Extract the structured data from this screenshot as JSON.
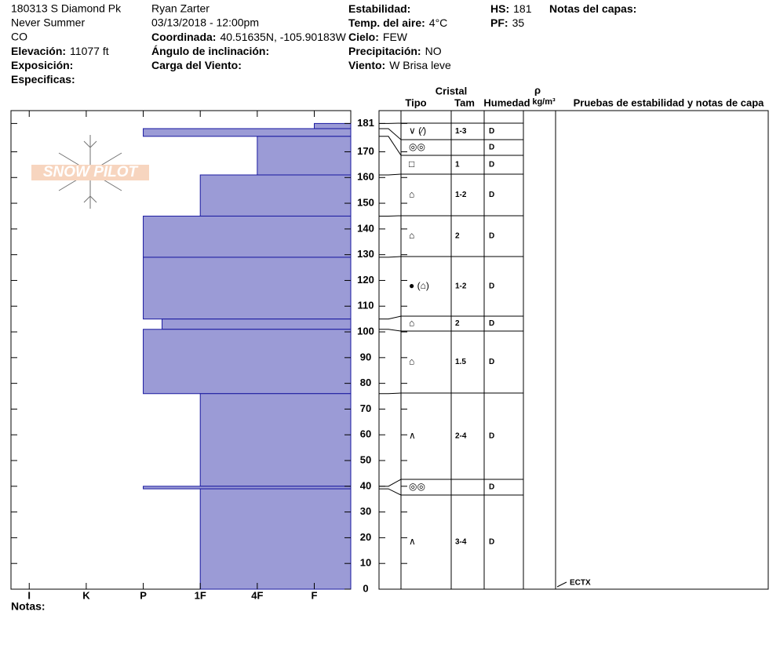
{
  "header": {
    "columns": [
      [
        {
          "text": "180313 S Diamond Pk"
        },
        {
          "text": "Never Summer"
        },
        {
          "text": "CO"
        },
        {
          "label": "Elevación:",
          "value": "11077 ft"
        },
        {
          "label": "Exposición:"
        },
        {
          "label": "Especificas:"
        }
      ],
      [
        {
          "text": "Ryan Zarter"
        },
        {
          "text": "03/13/2018 - 12:00pm"
        },
        {
          "label": "Coordinada:",
          "value": "40.51635N, -105.90183W"
        },
        {
          "label": "Ángulo de inclinación:"
        },
        {
          "label": "Carga del Viento:"
        }
      ],
      [
        {
          "label": "Estabilidad:"
        },
        {
          "label": "Temp. del aire:",
          "value": "4°C"
        },
        {
          "label": "Cielo:",
          "value": "FEW"
        },
        {
          "label": "Precipitación:",
          "value": "NO"
        },
        {
          "label": "Viento:",
          "value": "W Brisa leve"
        }
      ],
      [
        {
          "label": "HS:",
          "value": "181"
        },
        {
          "label": "PF:",
          "value": "35"
        }
      ],
      [
        {
          "label": "Notas del capas:"
        }
      ]
    ]
  },
  "logo": "SNOW PILOT",
  "notes_label": "Notas:",
  "chart_data": {
    "type": "snow-profile",
    "ylim": [
      0,
      186
    ],
    "yticks": [
      0,
      10,
      20,
      30,
      40,
      50,
      60,
      70,
      80,
      90,
      100,
      110,
      120,
      130,
      140,
      150,
      160,
      170,
      181
    ],
    "xlim": [
      0.68,
      6.64
    ],
    "xticks": [
      {
        "value": 1,
        "label": "I"
      },
      {
        "value": 2,
        "label": "K"
      },
      {
        "value": 3,
        "label": "P"
      },
      {
        "value": 4,
        "label": "1F"
      },
      {
        "value": 5,
        "label": "4F"
      },
      {
        "value": 6,
        "label": "F"
      }
    ],
    "color": "#9b9bd6",
    "edge_color": "#1a1aa0",
    "table_headers": {
      "crystal": "Cristal",
      "type": "Tipo",
      "size": "Tam",
      "moisture": "Humedad",
      "rho": "ρ",
      "density": "kg/m³",
      "tests": "Pruebas de estabilidad y notas de capa"
    },
    "layers": [
      {
        "top": 181,
        "bottom": 179,
        "hardness": 6,
        "grain": "∨ (⁄)",
        "size": "1-3",
        "moisture": "D"
      },
      {
        "top": 179,
        "bottom": 176,
        "hardness": 3,
        "grain": "◎◎",
        "size": null,
        "moisture": "D"
      },
      {
        "top": 176,
        "bottom": 161,
        "hardness": 5,
        "grain": "□",
        "size": "1",
        "moisture": "D"
      },
      {
        "top": 161,
        "bottom": 145,
        "hardness": 4,
        "grain": "⌂",
        "size": "1-2",
        "moisture": "D"
      },
      {
        "top": 145,
        "bottom": 129,
        "hardness": 3,
        "grain": "⌂",
        "size": "2",
        "moisture": "D"
      },
      {
        "top": 129,
        "bottom": 105,
        "hardness": 3,
        "grain": "● (⌂)",
        "size": "1-2",
        "moisture": "D"
      },
      {
        "top": 105,
        "bottom": 101,
        "hardness": 3.33,
        "grain": "⌂",
        "size": "2",
        "moisture": "D"
      },
      {
        "top": 101,
        "bottom": 76,
        "hardness": 3,
        "grain": "⌂",
        "size": "1.5",
        "moisture": "D"
      },
      {
        "top": 76,
        "bottom": 40,
        "hardness": 4,
        "grain": "∧",
        "size": "2-4",
        "moisture": "D"
      },
      {
        "top": 40,
        "bottom": 39,
        "hardness": 3,
        "grain": "◎◎",
        "size": null,
        "moisture": "D"
      },
      {
        "top": 39,
        "bottom": 0,
        "hardness": 4,
        "grain": "∧",
        "size": "3-4",
        "moisture": "D"
      }
    ],
    "annotations": [
      {
        "text": "ECTX"
      }
    ]
  }
}
